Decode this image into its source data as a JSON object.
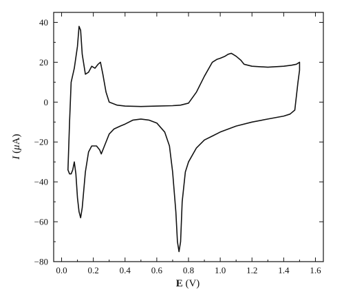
{
  "chart_data": {
    "type": "line",
    "title": "",
    "xlabel": {
      "symbol": "E",
      "unit": " (V)"
    },
    "ylabel": {
      "symbol": "I",
      "unit_prefix": " (",
      "unit_mu": "μ",
      "unit_rest": "A)"
    },
    "xlim": [
      -0.05,
      1.65
    ],
    "ylim": [
      -80,
      45
    ],
    "x_ticks": [
      0.0,
      0.2,
      0.4,
      0.6,
      0.8,
      1.0,
      1.2,
      1.4,
      1.6
    ],
    "x_tick_labels": [
      "0.0",
      "0.2",
      "0.4",
      "0.6",
      "0.8",
      "1.0",
      "1.2",
      "1.4",
      "1.6"
    ],
    "y_ticks": [
      40,
      20,
      0,
      -20,
      -40,
      -60,
      -80
    ],
    "y_tick_labels": [
      "40",
      "20",
      "0",
      "−20",
      "−40",
      "−60",
      "−80"
    ],
    "grid": false,
    "series": [
      {
        "x": [
          0.04,
          0.05,
          0.06,
          0.08,
          0.1,
          0.11,
          0.12,
          0.13,
          0.15,
          0.17,
          0.19,
          0.21,
          0.23,
          0.245,
          0.26,
          0.28,
          0.3,
          0.35,
          0.4,
          0.5,
          0.6,
          0.7,
          0.75,
          0.8,
          0.85,
          0.9,
          0.95,
          0.98,
          1.0,
          1.03,
          1.05,
          1.07,
          1.1,
          1.13,
          1.15,
          1.2,
          1.3,
          1.4,
          1.45,
          1.48,
          1.5,
          1.5,
          1.49,
          1.47,
          1.44,
          1.4,
          1.3,
          1.2,
          1.1,
          1.0,
          0.95,
          0.9,
          0.85,
          0.8,
          0.78,
          0.76,
          0.75,
          0.74,
          0.73,
          0.72,
          0.7,
          0.68,
          0.65,
          0.6,
          0.55,
          0.5,
          0.45,
          0.4,
          0.37,
          0.33,
          0.3,
          0.27,
          0.25,
          0.24,
          0.22,
          0.2,
          0.19,
          0.17,
          0.15,
          0.13,
          0.12,
          0.11,
          0.1,
          0.09,
          0.08,
          0.07,
          0.06,
          0.05,
          0.04
        ],
        "y": [
          -34,
          -10,
          10,
          17,
          28,
          38,
          36,
          24,
          14,
          15,
          18,
          17,
          19,
          20,
          14,
          5,
          0,
          -1.5,
          -2,
          -2.2,
          -2,
          -1.8,
          -1.5,
          -0.5,
          5,
          13,
          20,
          21.5,
          22,
          23,
          24,
          24.5,
          23,
          21,
          19,
          18,
          17.5,
          18,
          18.5,
          19,
          20,
          16,
          10,
          -4,
          -6,
          -7,
          -8.5,
          -10,
          -12,
          -15,
          -17,
          -19,
          -23,
          -30,
          -35,
          -50,
          -70,
          -75,
          -70,
          -55,
          -35,
          -22,
          -15,
          -10.5,
          -9,
          -8.5,
          -9,
          -11,
          -12,
          -13.5,
          -16,
          -22,
          -26,
          -24,
          -22,
          -22,
          -22,
          -25,
          -35,
          -53,
          -58,
          -55,
          -48,
          -36,
          -30,
          -34,
          -36,
          -36,
          -34
        ]
      }
    ]
  }
}
